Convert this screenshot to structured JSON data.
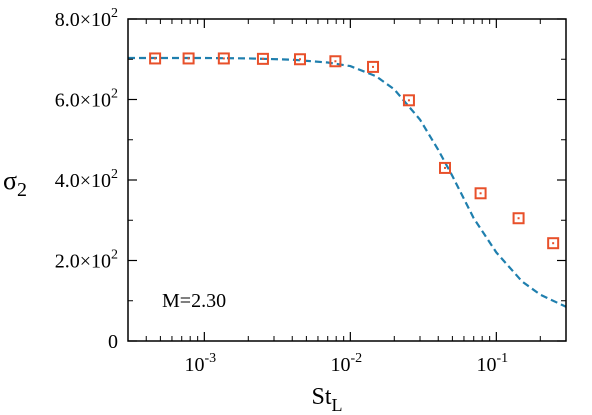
{
  "chart_data": {
    "type": "scatter",
    "x_scale": "log",
    "y_scale": "linear",
    "xlim": [
      0.0003,
      0.3
    ],
    "ylim": [
      0,
      800
    ],
    "x_major_ticks": [
      0.001,
      0.01,
      0.1
    ],
    "x_tick_labels": [
      {
        "base": "10",
        "exp": "-3"
      },
      {
        "base": "10",
        "exp": "-2"
      },
      {
        "base": "10",
        "exp": "-1"
      }
    ],
    "y_ticks": [
      0,
      200,
      400,
      600,
      800
    ],
    "y_tick_labels": [
      "0",
      "2.0×10",
      "4.0×10",
      "6.0×10",
      "8.0×10"
    ],
    "y_tick_exponent": "2",
    "xlabel": {
      "main": "St",
      "sub": "L"
    },
    "ylabel": {
      "main": "σ",
      "sub": "2"
    },
    "annotation": "M=2.30",
    "grid": false,
    "series": [
      {
        "kind": "markers",
        "marker": "square",
        "color": "#e8502a",
        "x": [
          0.00046,
          0.00078,
          0.00136,
          0.00252,
          0.00452,
          0.0079,
          0.0143,
          0.0252,
          0.0445,
          0.078,
          0.142,
          0.245
        ],
        "y": [
          702,
          702,
          702,
          701,
          700,
          695,
          681,
          598,
          430,
          367,
          305,
          243
        ]
      },
      {
        "kind": "line",
        "style": "dashed",
        "color": "#1f7fae",
        "x": [
          0.0003,
          0.001,
          0.002,
          0.004,
          0.007,
          0.01,
          0.015,
          0.02,
          0.03,
          0.04,
          0.05,
          0.07,
          0.1,
          0.15,
          0.2,
          0.3
        ],
        "y": [
          703,
          703,
          702,
          699,
          692,
          683,
          658,
          625,
          550,
          475,
          410,
          305,
          220,
          148,
          115,
          85
        ]
      }
    ]
  }
}
